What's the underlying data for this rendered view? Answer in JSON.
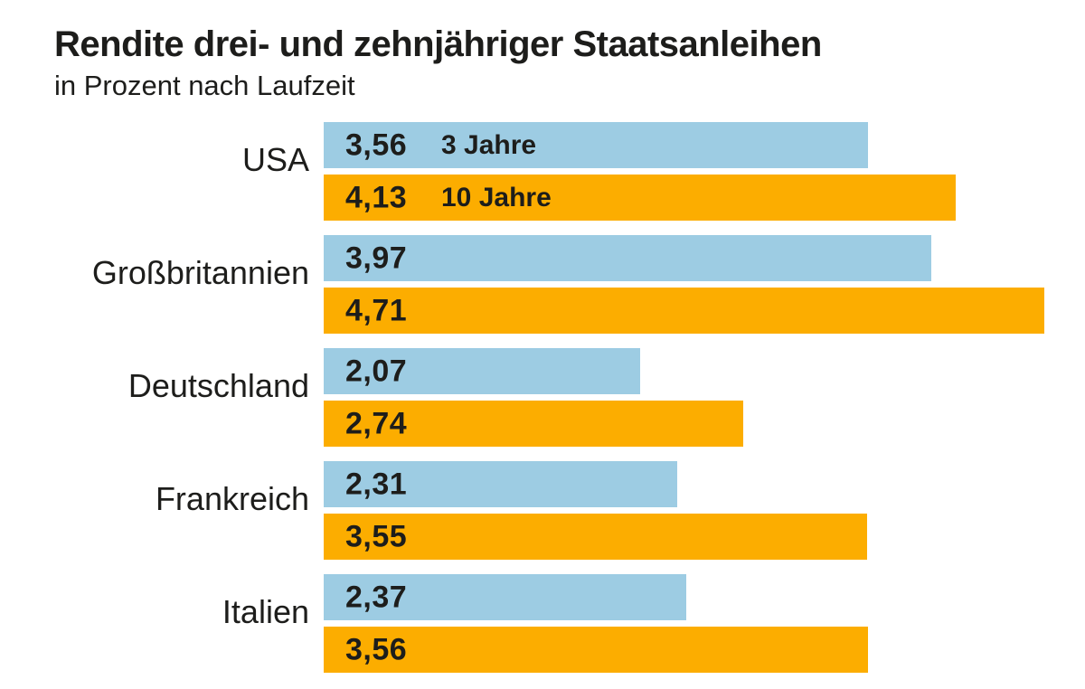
{
  "header": {
    "title": "Rendite drei- und zehnjähriger Staatsanleihen",
    "subtitle": "in Prozent nach Laufzeit"
  },
  "colors": {
    "three_year_bar": "#9DCCE3",
    "ten_year_bar": "#FCAD00",
    "text": "#1D1D1B",
    "background": "#FFFFFF"
  },
  "chart_data": {
    "type": "bar",
    "orientation": "horizontal",
    "title": "Rendite drei- und zehnjähriger Staatsanleihen",
    "subtitle": "in Prozent nach Laufzeit",
    "unit": "Prozent",
    "xlim": [
      0,
      4.71
    ],
    "grid": false,
    "legend": "inline labels on first group bars",
    "categories": [
      "USA",
      "Großbritannien",
      "Deutschland",
      "Frankreich",
      "Italien"
    ],
    "series": [
      {
        "name": "3 Jahre",
        "color": "#9DCCE3",
        "values": [
          3.56,
          3.97,
          2.07,
          2.31,
          2.37
        ]
      },
      {
        "name": "10 Jahre",
        "color": "#FCAD00",
        "values": [
          4.13,
          4.71,
          2.74,
          3.55,
          3.56
        ]
      }
    ],
    "groups": [
      {
        "category": "USA",
        "bars": [
          {
            "series": "3 Jahre",
            "value": 3.56,
            "label": "3,56",
            "series_label": "3 Jahre"
          },
          {
            "series": "10 Jahre",
            "value": 4.13,
            "label": "4,13",
            "series_label": "10 Jahre"
          }
        ]
      },
      {
        "category": "Großbritannien",
        "bars": [
          {
            "series": "3 Jahre",
            "value": 3.97,
            "label": "3,97",
            "series_label": ""
          },
          {
            "series": "10 Jahre",
            "value": 4.71,
            "label": "4,71",
            "series_label": ""
          }
        ]
      },
      {
        "category": "Deutschland",
        "bars": [
          {
            "series": "3 Jahre",
            "value": 2.07,
            "label": "2,07",
            "series_label": ""
          },
          {
            "series": "10 Jahre",
            "value": 2.74,
            "label": "2,74",
            "series_label": ""
          }
        ]
      },
      {
        "category": "Frankreich",
        "bars": [
          {
            "series": "3 Jahre",
            "value": 2.31,
            "label": "2,31",
            "series_label": ""
          },
          {
            "series": "10 Jahre",
            "value": 3.55,
            "label": "3,55",
            "series_label": ""
          }
        ]
      },
      {
        "category": "Italien",
        "bars": [
          {
            "series": "3 Jahre",
            "value": 2.37,
            "label": "2,37",
            "series_label": ""
          },
          {
            "series": "10 Jahre",
            "value": 3.56,
            "label": "3,56",
            "series_label": ""
          }
        ]
      }
    ]
  }
}
